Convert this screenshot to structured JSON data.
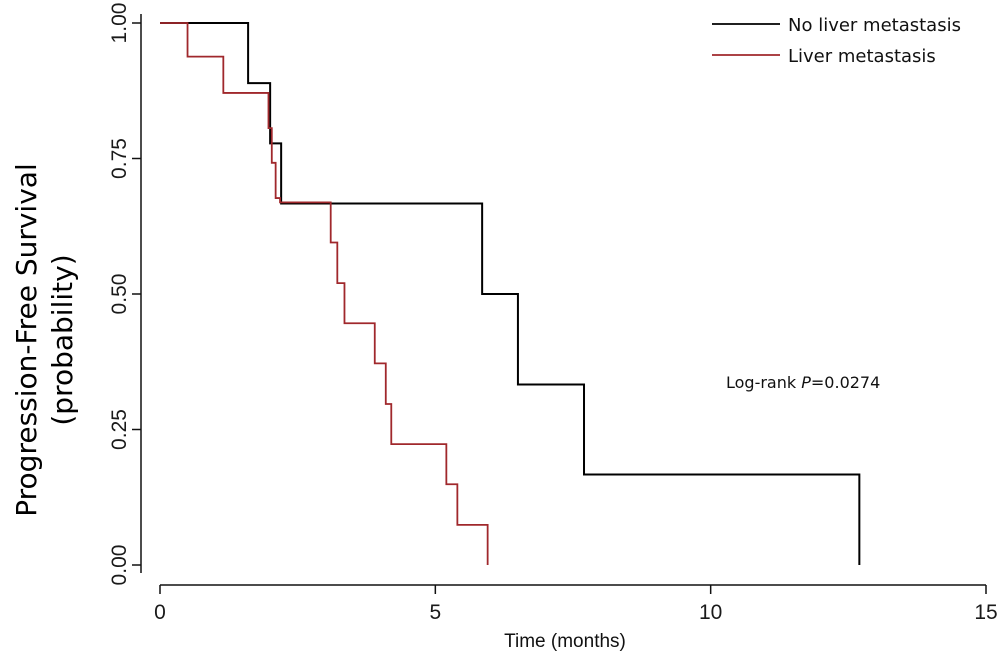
{
  "chart_data": {
    "type": "line",
    "subtype": "kaplan-meier-step",
    "title": "",
    "xlabel": "Time (months)",
    "ylabel_line1": "Progression-Free Survival",
    "ylabel_line2": "(probability)",
    "xlim": [
      0,
      15
    ],
    "ylim": [
      0,
      1
    ],
    "x_ticks": [
      0,
      5,
      10,
      15
    ],
    "x_tick_labels": [
      "0",
      "5",
      "10",
      "15"
    ],
    "y_ticks": [
      0,
      0.25,
      0.5,
      0.75,
      1
    ],
    "y_tick_labels": [
      "0.00",
      "0.25",
      "0.50",
      "0.75",
      "1.00"
    ],
    "grid": false,
    "legend_position": "top-right",
    "annotation": {
      "prefix": "Log-rank ",
      "italic": "P",
      "suffix": "=0.0274"
    },
    "series": [
      {
        "name": "No liver metastasis",
        "color": "#000000",
        "x": [
          0,
          1.6,
          2.0,
          2.2,
          5.85,
          6.5,
          7.7,
          12.7
        ],
        "y": [
          1.0,
          0.889,
          0.778,
          0.667,
          0.5,
          0.333,
          0.167,
          0.0
        ]
      },
      {
        "name": "Liver metastasis",
        "color": "#a0282c",
        "x": [
          0,
          0.5,
          1.15,
          1.97,
          2.03,
          2.1,
          2.18,
          3.1,
          3.22,
          3.35,
          3.9,
          4.1,
          4.2,
          5.2,
          5.4,
          5.95
        ],
        "y": [
          1.0,
          0.938,
          0.871,
          0.806,
          0.742,
          0.677,
          0.669,
          0.595,
          0.52,
          0.446,
          0.372,
          0.297,
          0.223,
          0.149,
          0.074,
          0.0
        ]
      }
    ]
  }
}
